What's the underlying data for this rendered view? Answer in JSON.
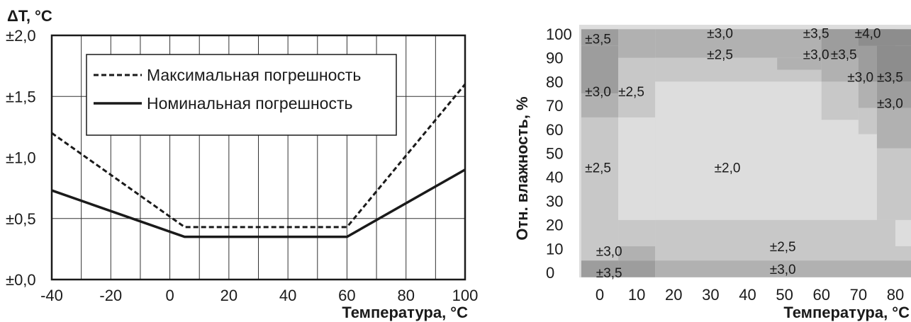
{
  "chart_data": [
    {
      "type": "line",
      "ylabel": "ΔT, °C",
      "xlabel": "Температура, °C",
      "xlim": [
        -40,
        100
      ],
      "ylim": [
        0,
        2.0
      ],
      "x_ticks": [
        -40,
        -20,
        0,
        20,
        40,
        60,
        80,
        100
      ],
      "x_tick_labels": [
        "-40",
        "-20",
        "0",
        "20",
        "40",
        "60",
        "80",
        "100"
      ],
      "y_ticks": [
        0,
        0.5,
        1.0,
        1.5,
        2.0
      ],
      "y_tick_labels": [
        "±0,0",
        "±0,5",
        "±1,0",
        "±1,5",
        "±2,0"
      ],
      "grid": true,
      "legend_position": "top-center",
      "series": [
        {
          "name": "Максимальная погрешность",
          "style": "dashed",
          "x": [
            -40,
            5,
            60,
            100
          ],
          "y": [
            1.2,
            0.43,
            0.43,
            1.6
          ]
        },
        {
          "name": "Номинальная погрешность",
          "style": "solid",
          "x": [
            -40,
            5,
            60,
            100
          ],
          "y": [
            0.73,
            0.35,
            0.35,
            0.9
          ]
        }
      ]
    },
    {
      "type": "heatmap",
      "ylabel": "Отн. влажность, %",
      "xlabel": "Температура, °C",
      "x_tick_labels": [
        "0",
        "10",
        "20",
        "30",
        "40",
        "50",
        "60",
        "70",
        "80"
      ],
      "y_tick_labels": [
        "100",
        "90",
        "80",
        "70",
        "60",
        "50",
        "40",
        "30",
        "20",
        "10",
        "0"
      ],
      "level_colors": {
        "2.0": "#dddddd",
        "2.5": "#c8c8c8",
        "3.0": "#b1b1b1",
        "3.5": "#9d9d9d",
        "4.0": "#8d8d8d"
      },
      "cells": [
        {
          "t": [
            -5,
            5
          ],
          "h": [
            95,
            102
          ],
          "level": 3.5
        },
        {
          "t": [
            -5,
            5
          ],
          "h": [
            75,
            95
          ],
          "level": 3.5
        },
        {
          "t": [
            -5,
            5
          ],
          "h": [
            65,
            75
          ],
          "level": 3.0
        },
        {
          "t": [
            -5,
            5
          ],
          "h": [
            5,
            65
          ],
          "level": 2.5
        },
        {
          "t": [
            -5,
            5
          ],
          "h": [
            -2,
            5
          ],
          "level": 3.5
        },
        {
          "t": [
            5,
            15
          ],
          "h": [
            -2,
            5
          ],
          "level": 3.5
        },
        {
          "t": [
            5,
            15
          ],
          "h": [
            5,
            11
          ],
          "level": 3.0
        },
        {
          "t": [
            5,
            15
          ],
          "h": [
            11,
            22
          ],
          "level": 2.5
        },
        {
          "t": [
            5,
            15
          ],
          "h": [
            22,
            65
          ],
          "level": 2.0
        },
        {
          "t": [
            5,
            15
          ],
          "h": [
            65,
            90
          ],
          "level": 2.5
        },
        {
          "t": [
            5,
            15
          ],
          "h": [
            90,
            102
          ],
          "level": 3.0
        },
        {
          "t": [
            15,
            80
          ],
          "h": [
            90,
            102
          ],
          "level": 3.0
        },
        {
          "t": [
            15,
            80
          ],
          "h": [
            80,
            90
          ],
          "level": 2.5
        },
        {
          "t": [
            15,
            80
          ],
          "h": [
            22,
            80
          ],
          "level": 2.0
        },
        {
          "t": [
            15,
            80
          ],
          "h": [
            11,
            22
          ],
          "level": 2.5
        },
        {
          "t": [
            15,
            80
          ],
          "h": [
            5,
            11
          ],
          "level": 2.5
        },
        {
          "t": [
            15,
            80
          ],
          "h": [
            -2,
            5
          ],
          "level": 3.0
        },
        {
          "t": [
            80,
            90
          ],
          "h": [
            -2,
            5
          ],
          "level": 3.0
        },
        {
          "t": [
            80,
            90
          ],
          "h": [
            5,
            11
          ],
          "level": 2.5
        },
        {
          "t": [
            80,
            90
          ],
          "h": [
            11,
            22
          ],
          "level": 2.0
        },
        {
          "t": [
            48,
            60
          ],
          "h": [
            85,
            90
          ],
          "level": 3.0
        },
        {
          "t": [
            60,
            70
          ],
          "h": [
            90,
            102
          ],
          "level": 3.5
        },
        {
          "t": [
            60,
            70
          ],
          "h": [
            80,
            90
          ],
          "level": 3.0
        },
        {
          "t": [
            60,
            70
          ],
          "h": [
            64,
            80
          ],
          "level": 2.5
        },
        {
          "t": [
            70,
            90
          ],
          "h": [
            95,
            102
          ],
          "level": 4.0
        },
        {
          "t": [
            70,
            75
          ],
          "h": [
            80,
            95
          ],
          "level": 3.5
        },
        {
          "t": [
            75,
            90
          ],
          "h": [
            80,
            95
          ],
          "level": 4.0
        },
        {
          "t": [
            70,
            75
          ],
          "h": [
            69,
            80
          ],
          "level": 3.0
        },
        {
          "t": [
            75,
            90
          ],
          "h": [
            69,
            80
          ],
          "level": 3.5
        },
        {
          "t": [
            70,
            75
          ],
          "h": [
            58,
            69
          ],
          "level": 2.5
        },
        {
          "t": [
            75,
            90
          ],
          "h": [
            52,
            69
          ],
          "level": 3.0
        },
        {
          "t": [
            75,
            90
          ],
          "h": [
            22,
            52
          ],
          "level": 2.5
        }
      ],
      "labels": [
        {
          "t": -4,
          "h": 98,
          "text": "±3,5"
        },
        {
          "t": 29,
          "h": 100.5,
          "text": "±3,0"
        },
        {
          "t": 55,
          "h": 100.5,
          "text": "±3,5"
        },
        {
          "t": 69,
          "h": 100.5,
          "text": "±4,0"
        },
        {
          "t": 29,
          "h": 91.5,
          "text": "±2,5"
        },
        {
          "t": 55,
          "h": 91.5,
          "text": "±3,0"
        },
        {
          "t": 62.5,
          "h": 91.5,
          "text": "±3,5"
        },
        {
          "t": 67,
          "h": 82,
          "text": "±3,0"
        },
        {
          "t": 75,
          "h": 82,
          "text": "±3,5"
        },
        {
          "t": -4,
          "h": 76,
          "text": "±3,0"
        },
        {
          "t": 5,
          "h": 76,
          "text": "±2,5"
        },
        {
          "t": 75,
          "h": 71,
          "text": "±3,0"
        },
        {
          "t": -4,
          "h": 44,
          "text": "±2,5"
        },
        {
          "t": 31,
          "h": 44,
          "text": "±2,0"
        },
        {
          "t": -1,
          "h": 9,
          "text": "±3,0"
        },
        {
          "t": 46,
          "h": 11,
          "text": "±2,5"
        },
        {
          "t": -1,
          "h": 0,
          "text": "±3,5"
        },
        {
          "t": 46,
          "h": 1.5,
          "text": "±3,0"
        }
      ]
    }
  ]
}
